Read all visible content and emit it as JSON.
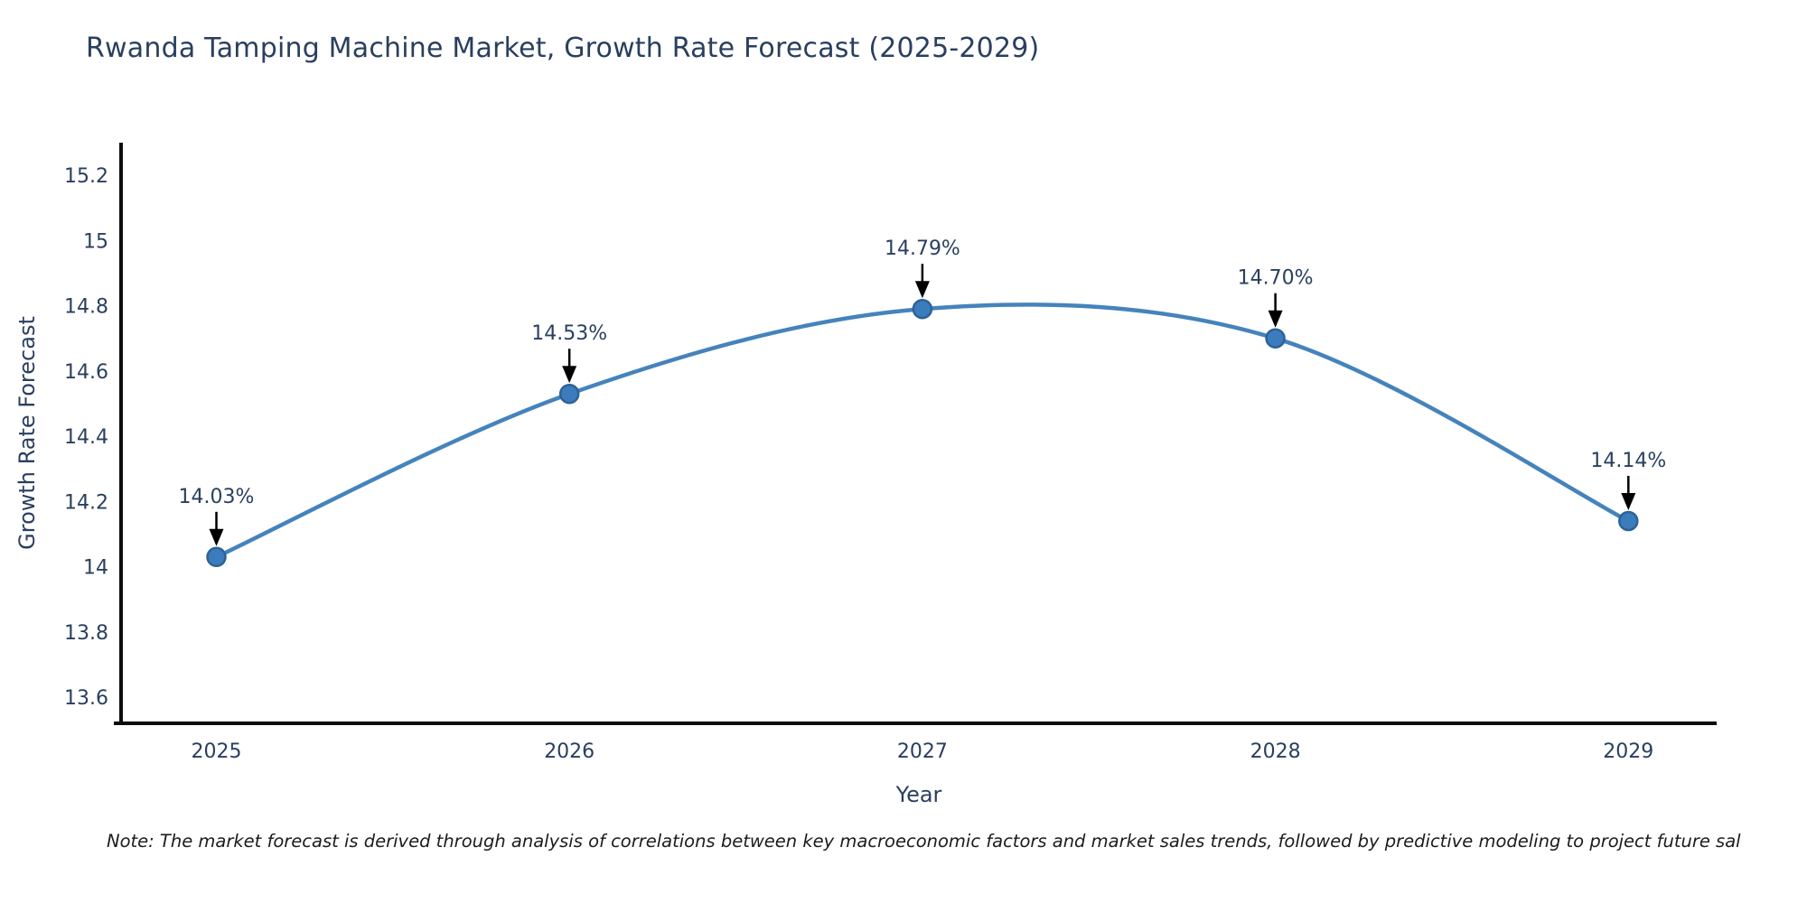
{
  "chart_data": {
    "type": "line",
    "title": "Rwanda Tamping Machine Market, Growth Rate Forecast (2025-2029)",
    "xlabel": "Year",
    "ylabel": "Growth Rate Forecast",
    "x": [
      2025,
      2026,
      2027,
      2028,
      2029
    ],
    "series": [
      {
        "name": "Growth Rate Forecast",
        "values": [
          14.03,
          14.53,
          14.79,
          14.7,
          14.14
        ]
      }
    ],
    "point_labels": [
      "14.03%",
      "14.53%",
      "14.79%",
      "14.70%",
      "14.14%"
    ],
    "xtick_labels": [
      "2025",
      "2026",
      "2027",
      "2028",
      "2029"
    ],
    "yticks": [
      13.6,
      13.8,
      14,
      14.2,
      14.4,
      14.6,
      14.8,
      15,
      15.2
    ],
    "ytick_labels": [
      "13.6",
      "13.8",
      "14",
      "14.2",
      "14.4",
      "14.6",
      "14.8",
      "15",
      "15.2"
    ],
    "xlim": [
      2024.73,
      2029.25
    ],
    "ylim": [
      13.52,
      15.3
    ],
    "grid": false,
    "legend": "none",
    "line_shape": "spline",
    "colors": {
      "line": "#4583bc",
      "marker": "#3b7cbd",
      "marker_edge": "#2d6295",
      "axis": "#0d0d0d",
      "text": "#2a3f5f",
      "arrow": "#000000",
      "note": "#1c1c1c",
      "background": "#ffffff"
    },
    "note": "Note: The market forecast is derived through analysis of correlations between key macroeconomic factors and market sales trends, followed by predictive modeling to project future sal"
  }
}
